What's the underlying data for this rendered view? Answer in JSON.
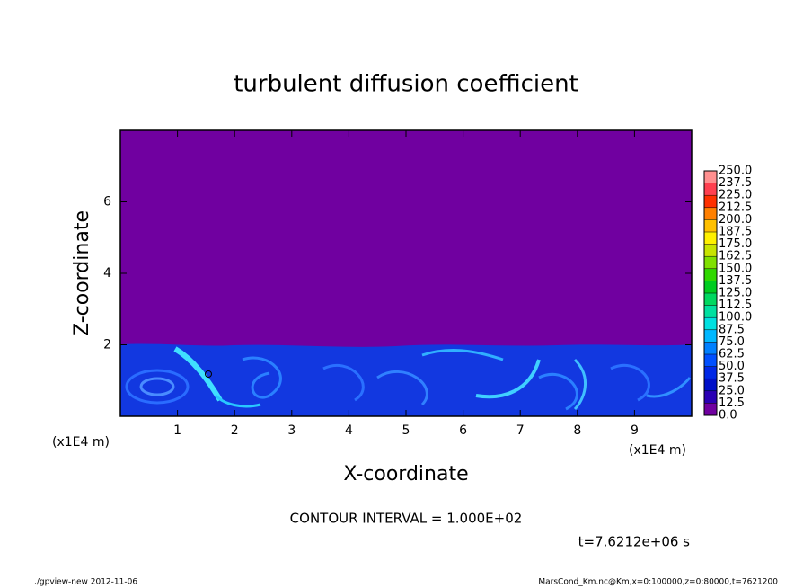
{
  "chart_data": {
    "type": "contour",
    "title": "turbulent diffusion coefficient",
    "x_label": "X-coordinate",
    "y_label": "Z-coordinate",
    "x_unit": "(x1E4 m)",
    "y_unit": "(x1E4 m)",
    "xlim": [
      0,
      10
    ],
    "ylim": [
      0,
      8
    ],
    "xticks": [
      1,
      2,
      3,
      4,
      5,
      6,
      7,
      8,
      9
    ],
    "yticks": [
      2,
      4,
      6
    ],
    "background_color": "#7000a0",
    "colorbar": {
      "levels": [
        {
          "value": 0,
          "label": "0.0"
        },
        {
          "value": 12.5,
          "label": "12.5"
        },
        {
          "value": 25,
          "label": "25.0"
        },
        {
          "value": 37.5,
          "label": "37.5"
        },
        {
          "value": 50,
          "label": "50.0"
        },
        {
          "value": 62.5,
          "label": "62.5"
        },
        {
          "value": 75,
          "label": "75.0"
        },
        {
          "value": 87.5,
          "label": "87.5"
        },
        {
          "value": 100,
          "label": "100.0"
        },
        {
          "value": 112.5,
          "label": "112.5"
        },
        {
          "value": 125,
          "label": "125.0"
        },
        {
          "value": 137.5,
          "label": "137.5"
        },
        {
          "value": 150,
          "label": "150.0"
        },
        {
          "value": 162.5,
          "label": "162.5"
        },
        {
          "value": 175,
          "label": "175.0"
        },
        {
          "value": 187.5,
          "label": "187.5"
        },
        {
          "value": 200,
          "label": "200.0"
        },
        {
          "value": 212.5,
          "label": "212.5"
        },
        {
          "value": 225,
          "label": "225.0"
        },
        {
          "value": 237.5,
          "label": "237.5"
        },
        {
          "value": 250,
          "label": "250.0"
        }
      ],
      "colors": [
        "#7000a0",
        "#2a00b4",
        "#0010c8",
        "#0028e6",
        "#0050ff",
        "#0080ff",
        "#00b8ff",
        "#00e0e0",
        "#00e0a0",
        "#00d860",
        "#00cc20",
        "#30d800",
        "#80e000",
        "#c8e400",
        "#fff000",
        "#ffc000",
        "#ff8000",
        "#ff3000",
        "#ff4050",
        "#ff9090"
      ]
    },
    "contour_interval": "CONTOUR INTERVAL = 1.000E+02",
    "time_label": "t=7.6212e+06 s",
    "footer_left": "./gpview-new  2012-11-06",
    "footer_right": "MarsCond_Km.nc@Km,x=0:100000,z=0:80000,t=7621200"
  }
}
